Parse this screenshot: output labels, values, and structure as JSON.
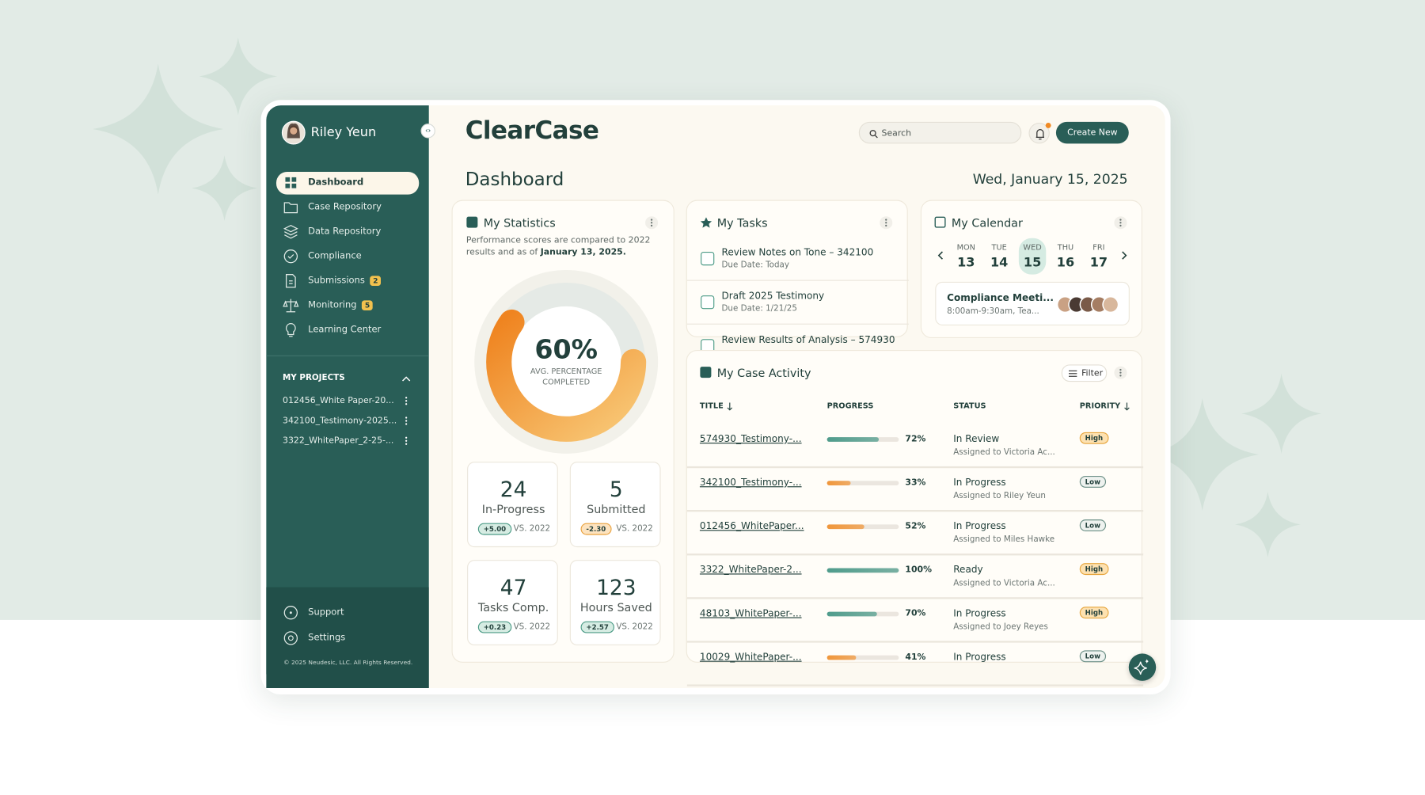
{
  "sidebar": {
    "user": "Riley Yeun",
    "nav": [
      {
        "label": "Dashboard"
      },
      {
        "label": "Case Repository"
      },
      {
        "label": "Data Repository"
      },
      {
        "label": "Compliance"
      },
      {
        "label": "Submissions",
        "badge": 2
      },
      {
        "label": "Monitoring",
        "badge": 5
      },
      {
        "label": "Learning Center"
      }
    ],
    "active": 0,
    "projects_heading": "MY PROJECTS",
    "projects": [
      "012456_White Paper-20...",
      "342100_Testimony-2025...",
      "3322_WhitePaper_2-25-..."
    ],
    "footer": [
      "Support",
      "Settings"
    ],
    "copyright": "© 2025 Neudesic, LLC. All Rights Reserved."
  },
  "header": {
    "app_name": "ClearCase",
    "search_placeholder": "Search",
    "create_button": "Create New"
  },
  "page": {
    "title": "Dashboard",
    "date": "Wed, January 15, 2025"
  },
  "statistics": {
    "title": "My Statistics",
    "description": "Performance scores are compared to 2022 results and as of ",
    "description_date": "January 13, 2025.",
    "percent": 60,
    "percent_label": "60%",
    "percent_caption": "AVG. PERCENTAGE COMPLETED",
    "stats": [
      {
        "value": 24,
        "label": "In-Progress",
        "change": "+5.00",
        "compare": "VS. 2022"
      },
      {
        "value": 5,
        "label": "Submitted",
        "change": "-2.30",
        "compare": "VS. 2022"
      },
      {
        "value": 47,
        "label": "Tasks Comp.",
        "change": "+0.23",
        "compare": "VS. 2022"
      },
      {
        "value": 123,
        "label": "Hours Saved",
        "change": "+2.57",
        "compare": "VS. 2022"
      }
    ]
  },
  "tasks": {
    "title": "My Tasks",
    "items": [
      {
        "title": "Review Notes on Tone – 342100",
        "due": "Due Date: Today"
      },
      {
        "title": "Draft 2025 Testimony",
        "due": "Due Date: 1/21/25"
      },
      {
        "title": "Review Results of Analysis – 574930"
      }
    ]
  },
  "calendar": {
    "title": "My Calendar",
    "days": [
      {
        "weekday": "MON",
        "day": 13
      },
      {
        "weekday": "TUE",
        "day": 14
      },
      {
        "weekday": "WED",
        "day": 15
      },
      {
        "weekday": "THU",
        "day": 16
      },
      {
        "weekday": "FRI",
        "day": 17
      }
    ],
    "selected": 2,
    "event": {
      "title": "Compliance Meeti...",
      "time": "8:00am-9:30am, Tea..."
    }
  },
  "activity": {
    "title": "My Case Activity",
    "filter": "Filter",
    "columns": [
      "TITLE",
      "PROGRESS",
      "STATUS",
      "PRIORITY"
    ],
    "rows": [
      {
        "title": "574930_Testimony-...",
        "progress": 72,
        "progress_label": "72%",
        "bar_color": "#4f9c8c",
        "status": "In Review",
        "assigned": "Assigned to Victoria Ac...",
        "priority": "High"
      },
      {
        "title": "342100_Testimony-...",
        "progress": 33,
        "progress_label": "33%",
        "bar_color": "#f0963a",
        "status": "In Progress",
        "assigned": "Assigned to Riley Yeun",
        "priority": "Low"
      },
      {
        "title": "012456_WhitePaper...",
        "progress": 52,
        "progress_label": "52%",
        "bar_color": "#f0963a",
        "status": "In Progress",
        "assigned": "Assigned to Miles Hawke",
        "priority": "Low"
      },
      {
        "title": "3322_WhitePaper-2...",
        "progress": 100,
        "progress_label": "100%",
        "bar_color": "#4f9c8c",
        "status": "Ready",
        "assigned": "Assigned to Victoria Ac...",
        "priority": "High"
      },
      {
        "title": "48103_WhitePaper-...",
        "progress": 70,
        "progress_label": "70%",
        "bar_color": "#4f9c8c",
        "status": "In Progress",
        "assigned": "Assigned to Joey Reyes",
        "priority": "High"
      },
      {
        "title": "10029_WhitePaper-...",
        "progress": 41,
        "progress_label": "41%",
        "bar_color": "#f0963a",
        "status": "In Progress",
        "priority": "Low"
      }
    ]
  }
}
